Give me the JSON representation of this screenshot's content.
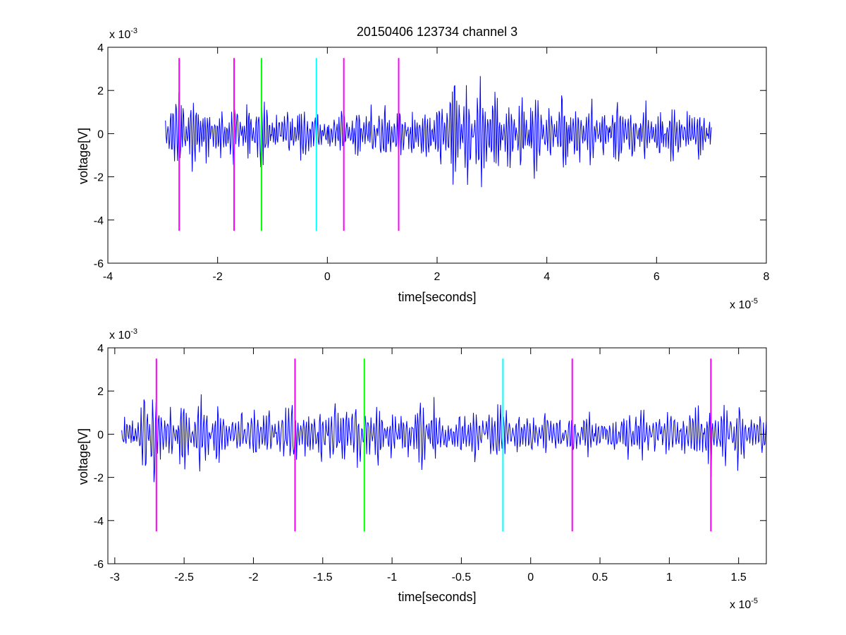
{
  "chart_data": [
    {
      "type": "line",
      "title": "20150406 123734 channel 3",
      "xlabel": "time[seconds]",
      "ylabel": "voltage[V]",
      "x_exponent_label": {
        "base": "x 10",
        "power": "-5"
      },
      "y_exponent_label": {
        "base": "x 10",
        "power": "-3"
      },
      "xlim": [
        -4,
        8
      ],
      "ylim": [
        -6,
        4
      ],
      "x_ticks": [
        -4,
        -2,
        0,
        2,
        4,
        6,
        8
      ],
      "x_tick_labels": [
        "-4",
        "-2",
        "0",
        "2",
        "4",
        "6",
        "8"
      ],
      "y_ticks": [
        -6,
        -4,
        -2,
        0,
        2,
        4
      ],
      "y_tick_labels": [
        "-6",
        "-4",
        "-2",
        "0",
        "2",
        "4"
      ],
      "grid": false,
      "series": [
        {
          "color": "#0000ff",
          "x_range": [
            -2.95,
            7.0
          ],
          "x": [
            -2.95,
            -2.7,
            -2.45,
            -2.2,
            -1.95,
            -1.7,
            -1.45,
            -1.2,
            -0.95,
            -0.7,
            -0.45,
            -0.2,
            0.05,
            0.3,
            0.55,
            0.8,
            1.05,
            1.3,
            1.55,
            1.8,
            2.05,
            2.3,
            2.55,
            2.8,
            3.05,
            3.3,
            3.55,
            3.8,
            4.05,
            4.3,
            4.55,
            4.8,
            5.05,
            5.3,
            5.55,
            5.8,
            6.05,
            6.3,
            6.55,
            6.8,
            7.0
          ],
          "y": [
            0.5,
            -2.8,
            2.1,
            -1.5,
            1.2,
            -1.7,
            1.4,
            -1.9,
            0.6,
            -1.0,
            1.5,
            -0.8,
            0.4,
            -1.2,
            1.6,
            -1.4,
            2.0,
            -1.6,
            1.3,
            -1.8,
            1.9,
            -4.0,
            3.1,
            -3.7,
            3.0,
            -2.1,
            2.1,
            -2.7,
            1.6,
            -2.6,
            1.7,
            -1.8,
            1.3,
            -2.1,
            1.2,
            -1.5,
            1.1,
            -1.9,
            1.0,
            -1.2,
            0.6
          ]
        }
      ],
      "markers": [
        {
          "x": -2.7,
          "color": "#ff00ff",
          "y_range": [
            -4.5,
            3.5
          ]
        },
        {
          "x": -1.7,
          "color": "#ff00ff",
          "y_range": [
            -4.5,
            3.5
          ]
        },
        {
          "x": -1.2,
          "color": "#00ff00",
          "y_range": [
            -4.5,
            3.5
          ]
        },
        {
          "x": -0.2,
          "color": "#00ffff",
          "y_range": [
            -4.5,
            3.5
          ]
        },
        {
          "x": 0.3,
          "color": "#ff00ff",
          "y_range": [
            -4.5,
            3.5
          ]
        },
        {
          "x": 1.3,
          "color": "#ff00ff",
          "y_range": [
            -4.5,
            3.5
          ]
        }
      ]
    },
    {
      "type": "line",
      "title": "",
      "xlabel": "time[seconds]",
      "ylabel": "voltage[V]",
      "x_exponent_label": {
        "base": "x 10",
        "power": "-5"
      },
      "y_exponent_label": {
        "base": "x 10",
        "power": "-3"
      },
      "xlim": [
        -3.05,
        1.7
      ],
      "ylim": [
        -6,
        4
      ],
      "x_ticks": [
        -3,
        -2.5,
        -2,
        -1.5,
        -1,
        -0.5,
        0,
        0.5,
        1,
        1.5
      ],
      "x_tick_labels": [
        "-3",
        "-2.5",
        "-2",
        "-1.5",
        "-1",
        "-0.5",
        "0",
        "0.5",
        "1",
        "1.5"
      ],
      "y_ticks": [
        -6,
        -4,
        -2,
        0,
        2,
        4
      ],
      "y_tick_labels": [
        "-6",
        "-4",
        "-2",
        "0",
        "2",
        "4"
      ],
      "grid": false,
      "series": [
        {
          "color": "#0000ff",
          "x_range": [
            -2.95,
            1.7
          ],
          "x": [
            -2.95,
            -2.85,
            -2.78,
            -2.72,
            -2.6,
            -2.5,
            -2.38,
            -2.25,
            -2.1,
            -2.0,
            -1.9,
            -1.8,
            -1.7,
            -1.6,
            -1.5,
            -1.42,
            -1.35,
            -1.25,
            -1.18,
            -1.1,
            -1.0,
            -0.9,
            -0.8,
            -0.7,
            -0.6,
            -0.5,
            -0.4,
            -0.3,
            -0.2,
            -0.1,
            0.0,
            0.1,
            0.2,
            0.3,
            0.4,
            0.5,
            0.6,
            0.7,
            0.8,
            0.9,
            1.0,
            1.1,
            1.2,
            1.3,
            1.4,
            1.5,
            1.6,
            1.7
          ],
          "y": [
            0.5,
            -0.3,
            2.3,
            -2.8,
            1.5,
            -2.2,
            2.0,
            -1.6,
            1.1,
            -1.5,
            1.4,
            -0.9,
            -1.6,
            1.3,
            -1.2,
            2.7,
            -2.2,
            2.1,
            -1.8,
            1.9,
            -1.3,
            1.5,
            -2.2,
            1.8,
            -0.8,
            1.2,
            -1.3,
            0.7,
            1.6,
            -0.9,
            1.0,
            -1.1,
            0.8,
            -1.0,
            1.1,
            -0.7,
            0.9,
            -1.1,
            1.4,
            -0.8,
            1.1,
            -0.9,
            2.0,
            -1.9,
            1.8,
            -1.8,
            0.6,
            0.5
          ]
        }
      ],
      "markers": [
        {
          "x": -2.7,
          "color": "#ff00ff",
          "y_range": [
            -4.5,
            3.5
          ]
        },
        {
          "x": -1.7,
          "color": "#ff00ff",
          "y_range": [
            -4.5,
            3.5
          ]
        },
        {
          "x": -1.2,
          "color": "#00ff00",
          "y_range": [
            -4.5,
            3.5
          ]
        },
        {
          "x": -0.2,
          "color": "#00ffff",
          "y_range": [
            -4.5,
            3.5
          ]
        },
        {
          "x": 0.3,
          "color": "#ff00ff",
          "y_range": [
            -4.5,
            3.5
          ]
        },
        {
          "x": 1.3,
          "color": "#ff00ff",
          "y_range": [
            -4.5,
            3.5
          ]
        }
      ]
    }
  ]
}
